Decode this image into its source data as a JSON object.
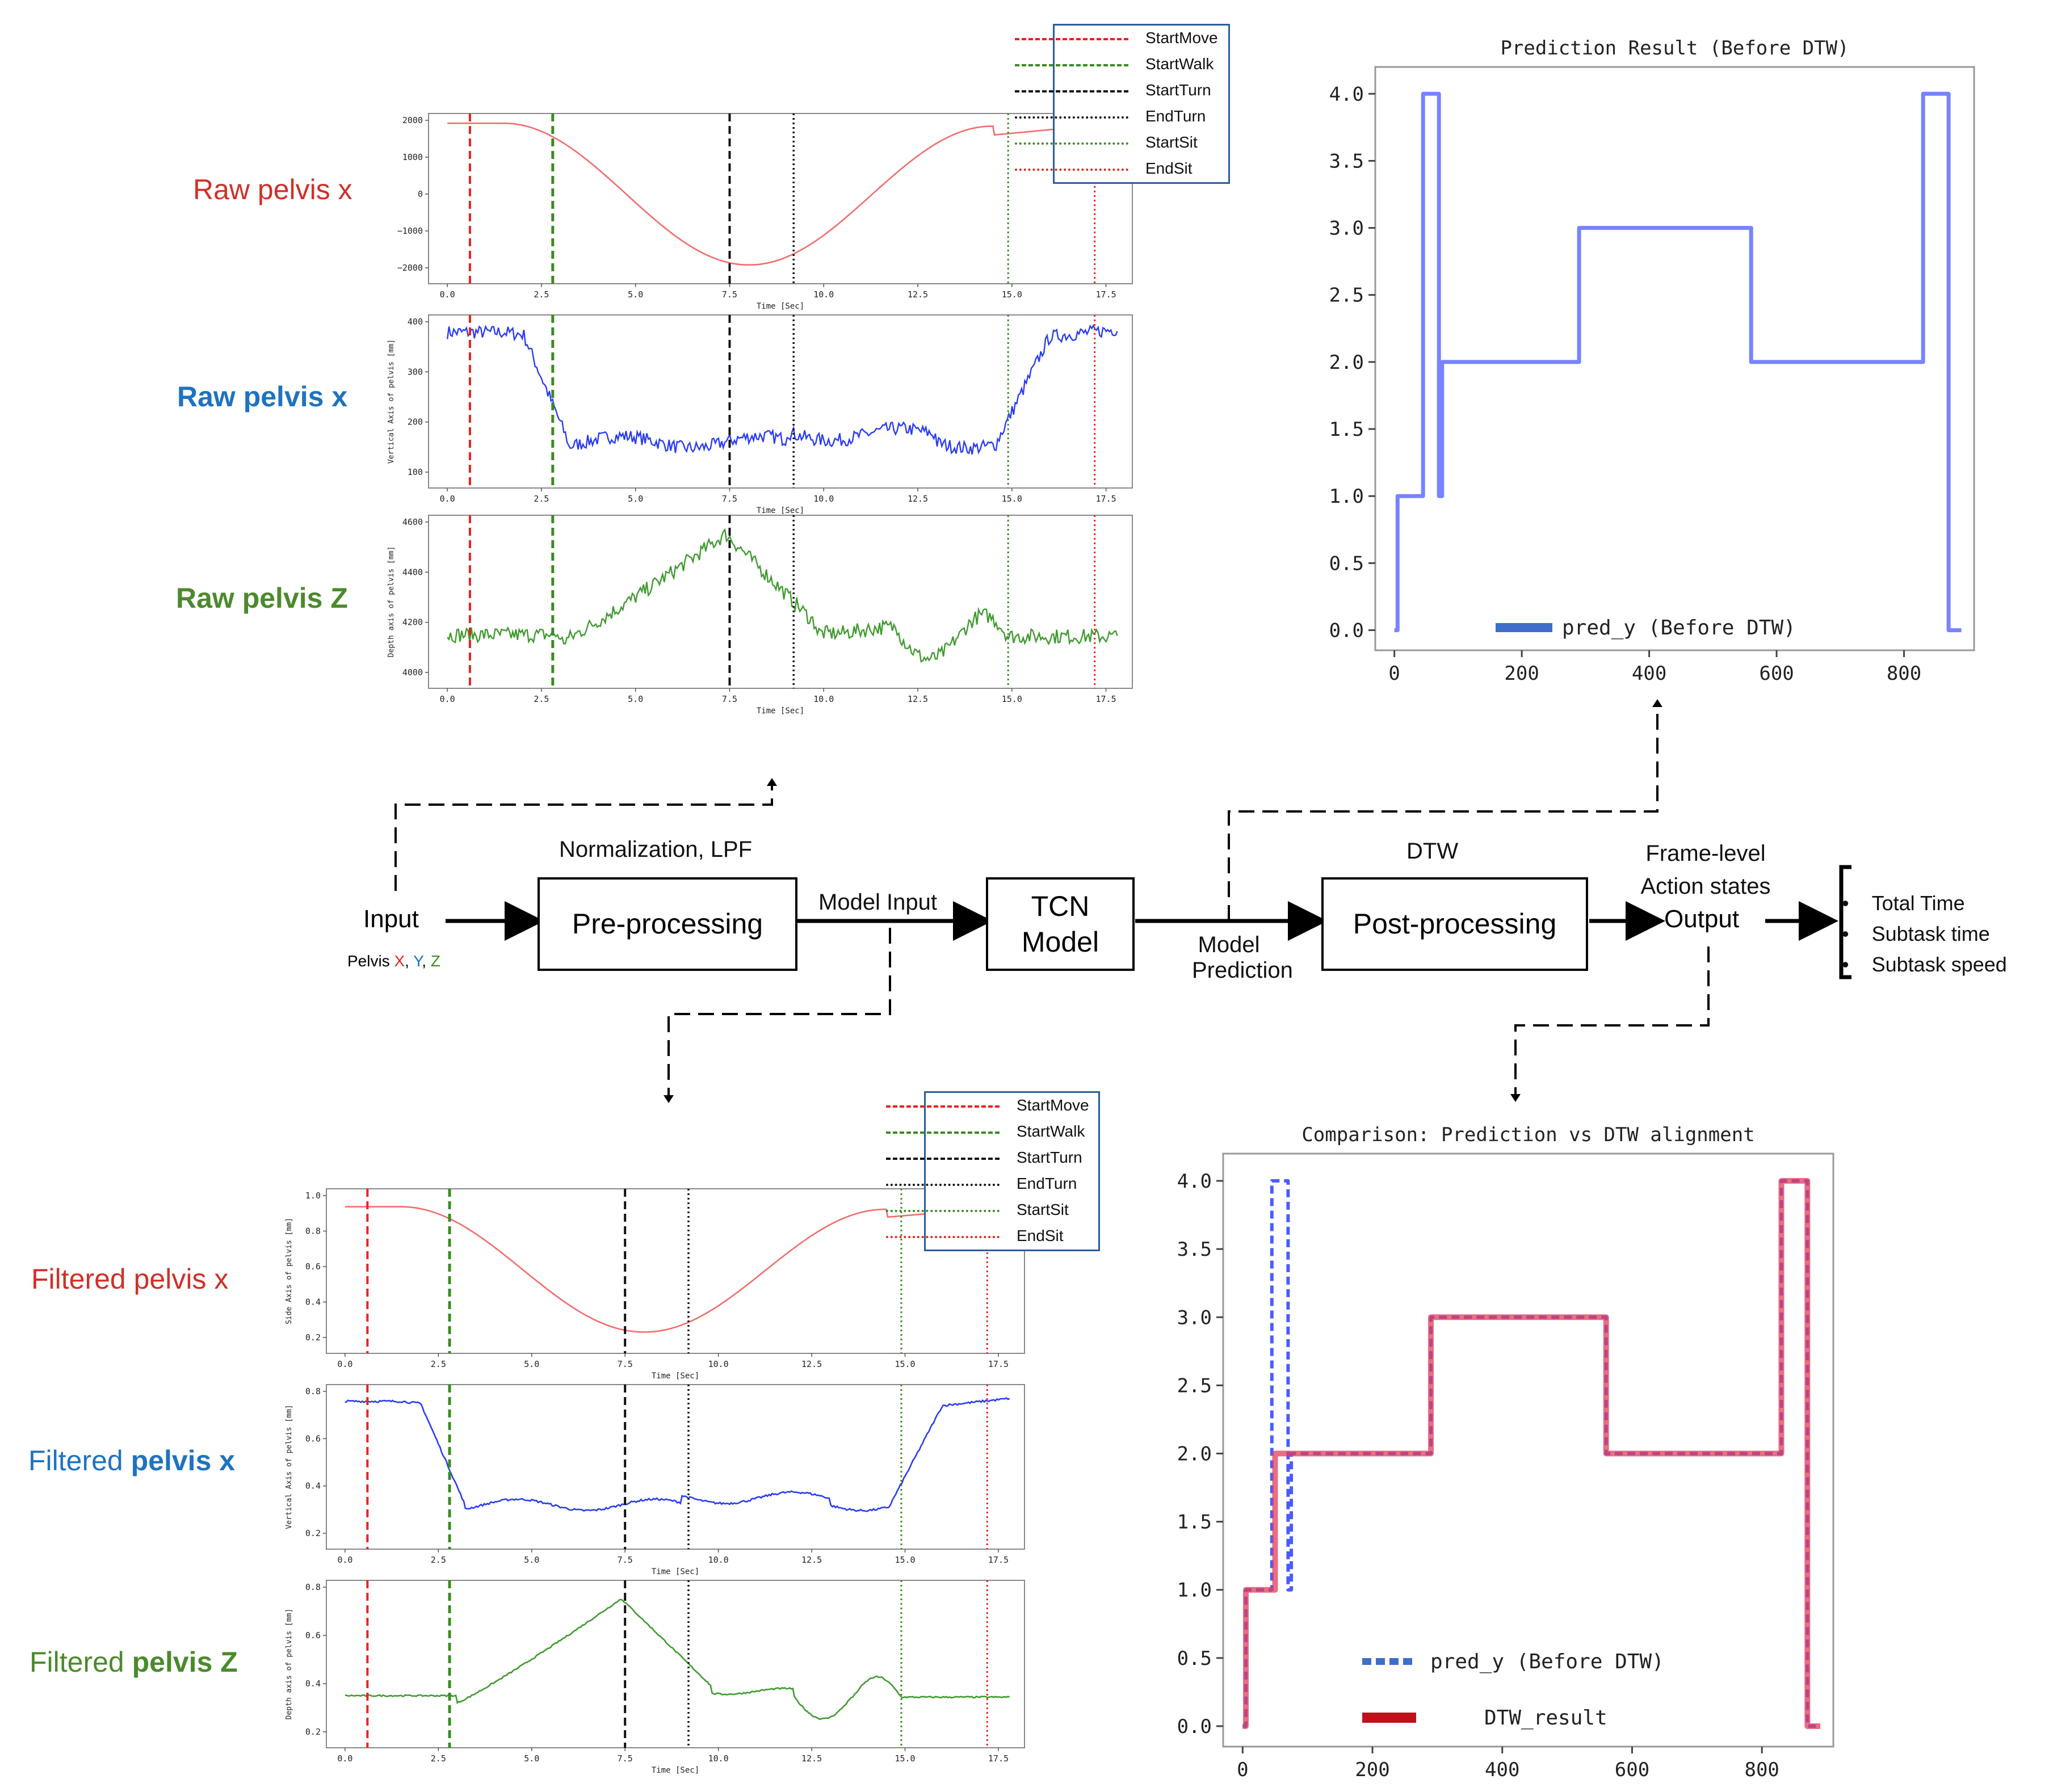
{
  "colors": {
    "red": "#e8231f",
    "green": "#3b8a22",
    "black": "#111111",
    "blue_signal": "#2a3cf5",
    "red_signal": "#f46b6b",
    "green_signal": "#3f9a2f",
    "pred_blue": "#5f6dff",
    "dtw_red": "#e23d5a",
    "legend_border": "#2a5d9b"
  },
  "labels": {
    "raw_x": "Raw pelvis x",
    "raw_y": "Raw pelvis x",
    "raw_z": "Raw pelvis Z",
    "filt_x": "Filtered pelvis x",
    "filt_y_pre": "Filtered ",
    "filt_y_bold": "pelvis x",
    "filt_z_pre": "Filtered ",
    "filt_z_bold": "pelvis Z"
  },
  "flow": {
    "input": "Input",
    "input_sub_pre": "Pelvis ",
    "input_sub_x": "X",
    "input_sub_sep1": ", ",
    "input_sub_y": "Y",
    "input_sub_sep2": ", ",
    "input_sub_z": "Z",
    "norm_label": "Normalization, LPF",
    "preprocessing": "Pre-processing",
    "model_input": "Model Input",
    "tcn_line1": "TCN",
    "tcn_line2": "Model",
    "model_pred_line1": "Model",
    "model_pred_line2": "Prediction",
    "dtw": "DTW",
    "postprocessing": "Post-processing",
    "frame_line1": "Frame-level",
    "frame_line2": "Action states",
    "output": "Output",
    "bullets": [
      "Total Time",
      "Subtask time",
      "Subtask speed"
    ]
  },
  "legend_items": [
    "StartMove",
    "StartWalk",
    "StartTurn",
    "EndTurn",
    "StartSit",
    "EndSit"
  ],
  "event_times": {
    "StartMove": 0.6,
    "StartWalk": 2.8,
    "StartTurn": 7.5,
    "EndTurn": 9.2,
    "StartSit": 14.9,
    "EndSit": 17.2
  },
  "small_plots": {
    "x_ticks": [
      "0.0",
      "2.5",
      "5.0",
      "7.5",
      "10.0",
      "12.5",
      "15.0",
      "17.5"
    ],
    "xlabel": "Time [Sec]",
    "raw_x": {
      "yticks": [
        "2000",
        "1000",
        "0",
        "−1000",
        "−2000"
      ],
      "ylabel": ""
    },
    "raw_y": {
      "yticks": [
        "400",
        "300",
        "200",
        "100"
      ],
      "ylabel": "Vertical Axis of pelvis [mm]"
    },
    "raw_z": {
      "yticks": [
        "4600",
        "4400",
        "4200",
        "4000"
      ],
      "ylabel": "Depth axis of pelvis [mm]"
    },
    "filt_x": {
      "yticks": [
        "1.0",
        "0.8",
        "0.6",
        "0.4",
        "0.2"
      ],
      "ylabel": "Side Axis of pelvis [mm]"
    },
    "filt_y": {
      "yticks": [
        "0.8",
        "0.6",
        "0.4",
        "0.2"
      ],
      "ylabel": "Vertical Axis of pelvis [mm]"
    },
    "filt_z": {
      "yticks": [
        "0.8",
        "0.6",
        "0.4",
        "0.2"
      ],
      "ylabel": "Depth axis of pelvis [mm]"
    }
  },
  "chart_data": [
    {
      "type": "line",
      "title": "Prediction Result (Before DTW)",
      "xlabel": "",
      "ylabel": "",
      "xlim": [
        -30,
        910
      ],
      "ylim": [
        -0.15,
        4.2
      ],
      "xticks": [
        "0",
        "200",
        "400",
        "600",
        "800"
      ],
      "yticks": [
        "0.0",
        "0.5",
        "1.0",
        "1.5",
        "2.0",
        "2.5",
        "3.0",
        "3.5",
        "4.0"
      ],
      "series": [
        {
          "name": "pred_y (Before DTW)",
          "x": [
            0,
            5,
            5,
            45,
            45,
            70,
            70,
            75,
            75,
            290,
            290,
            560,
            560,
            830,
            830,
            870,
            870,
            890
          ],
          "y": [
            0,
            0,
            1,
            1,
            4,
            4,
            1,
            1,
            2,
            2,
            3,
            3,
            2,
            2,
            4,
            4,
            0,
            0
          ]
        }
      ],
      "legend": "bottom-center"
    },
    {
      "type": "line",
      "title": "Comparison: Prediction vs DTW alignment",
      "xlabel": "",
      "ylabel": "",
      "xlim": [
        -30,
        910
      ],
      "ylim": [
        -0.15,
        4.2
      ],
      "xticks": [
        "0",
        "200",
        "400",
        "600",
        "800"
      ],
      "yticks": [
        "0.0",
        "0.5",
        "1.0",
        "1.5",
        "2.0",
        "2.5",
        "3.0",
        "3.5",
        "4.0"
      ],
      "series": [
        {
          "name": "pred_y (Before DTW)",
          "x": [
            0,
            5,
            5,
            45,
            45,
            70,
            70,
            75,
            75,
            290,
            290,
            560,
            560,
            830,
            830,
            870,
            870,
            890
          ],
          "y": [
            0,
            0,
            1,
            1,
            4,
            4,
            1,
            1,
            2,
            2,
            3,
            3,
            2,
            2,
            4,
            4,
            0,
            0
          ]
        },
        {
          "name": "DTW_result",
          "x": [
            0,
            5,
            5,
            50,
            50,
            290,
            290,
            560,
            560,
            830,
            830,
            870,
            870,
            890
          ],
          "y": [
            0,
            0,
            1,
            1,
            2,
            2,
            3,
            3,
            2,
            2,
            4,
            4,
            0,
            0
          ]
        }
      ],
      "legend": "bottom-center"
    }
  ]
}
